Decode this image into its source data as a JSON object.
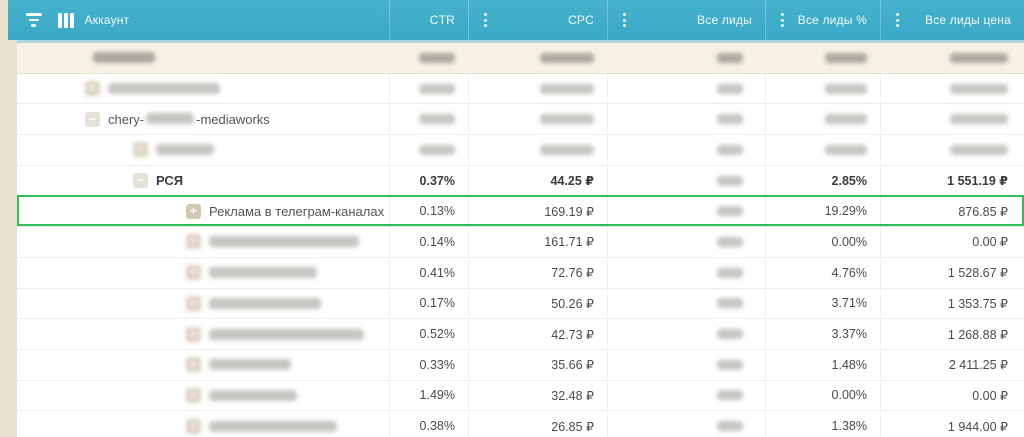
{
  "header": {
    "account_label": "Аккаунт",
    "columns": [
      {
        "label": "CTR"
      },
      {
        "label": "CPC"
      },
      {
        "label": "Все лиды"
      },
      {
        "label": "Все лиды %"
      },
      {
        "label": "Все лиды цена"
      }
    ]
  },
  "colors": {
    "header_bg": "#3fadc9",
    "highlight_green": "#2fbe55",
    "page_bg": "#e8e0cd",
    "summary_row_bg": "#f6f1e4"
  },
  "rows": [
    {
      "summary": true,
      "indent": 0,
      "expander": null,
      "name_blurred": true,
      "name_blur_width": 62,
      "values": null
    },
    {
      "indent": 1,
      "expander": "plus",
      "expander_blurred": true,
      "name_blurred": true,
      "name_blur_width": 112,
      "values": null
    },
    {
      "indent": 1,
      "expander": "minus",
      "name_prefix": "chery-",
      "name_mid_blur_width": 48,
      "name_suffix": "-mediaworks",
      "values": null
    },
    {
      "indent": 2,
      "expander": "plus",
      "expander_blurred": true,
      "name_blurred": true,
      "name_blur_width": 58,
      "values": null
    },
    {
      "indent": 2,
      "expander": "minus",
      "name": "РСЯ",
      "bold": true,
      "values": {
        "ctr": "0.37%",
        "cpc": "44.25 ₽",
        "leads": null,
        "leads_pct": "2.85%",
        "leads_cost": "1 551.19 ₽"
      }
    },
    {
      "indent": 3,
      "expander": "plus",
      "name": "Реклама в телеграм-каналах",
      "highlight": true,
      "values": {
        "ctr": "0.13%",
        "cpc": "169.19 ₽",
        "leads": null,
        "leads_pct": "19.29%",
        "leads_cost": "876.85 ₽"
      }
    },
    {
      "indent": 3,
      "expander": "plus",
      "expander_blurred": true,
      "name_blurred": true,
      "name_blur_width": 150,
      "values": {
        "ctr": "0.14%",
        "cpc": "161.71 ₽",
        "leads": null,
        "leads_pct": "0.00%",
        "leads_cost": "0.00 ₽"
      }
    },
    {
      "indent": 3,
      "expander": "plus",
      "expander_blurred": true,
      "name_blurred": true,
      "name_blur_width": 108,
      "values": {
        "ctr": "0.41%",
        "cpc": "72.76 ₽",
        "leads": null,
        "leads_pct": "4.76%",
        "leads_cost": "1 528.67 ₽"
      }
    },
    {
      "indent": 3,
      "expander": "plus",
      "expander_blurred": true,
      "name_blurred": true,
      "name_blur_width": 112,
      "values": {
        "ctr": "0.17%",
        "cpc": "50.26 ₽",
        "leads": null,
        "leads_pct": "3.71%",
        "leads_cost": "1 353.75 ₽"
      }
    },
    {
      "indent": 3,
      "expander": "plus",
      "expander_blurred": true,
      "name_blurred": true,
      "name_blur_width": 155,
      "values": {
        "ctr": "0.52%",
        "cpc": "42.73 ₽",
        "leads": null,
        "leads_pct": "3.37%",
        "leads_cost": "1 268.88 ₽"
      }
    },
    {
      "indent": 3,
      "expander": "plus",
      "expander_blurred": true,
      "name_blurred": true,
      "name_blur_width": 82,
      "values": {
        "ctr": "0.33%",
        "cpc": "35.66 ₽",
        "leads": null,
        "leads_pct": "1.48%",
        "leads_cost": "2 411.25 ₽"
      }
    },
    {
      "indent": 3,
      "expander": "plus",
      "expander_blurred": true,
      "name_blurred": true,
      "name_blur_width": 88,
      "values": {
        "ctr": "1.49%",
        "cpc": "32.48 ₽",
        "leads": null,
        "leads_pct": "0.00%",
        "leads_cost": "0.00 ₽"
      }
    },
    {
      "indent": 3,
      "expander": "plus",
      "expander_blurred": true,
      "name_blurred": true,
      "name_blur_width": 128,
      "values": {
        "ctr": "0.38%",
        "cpc": "26.85 ₽",
        "leads": null,
        "leads_pct": "1.38%",
        "leads_cost": "1 944.00 ₽"
      }
    }
  ]
}
